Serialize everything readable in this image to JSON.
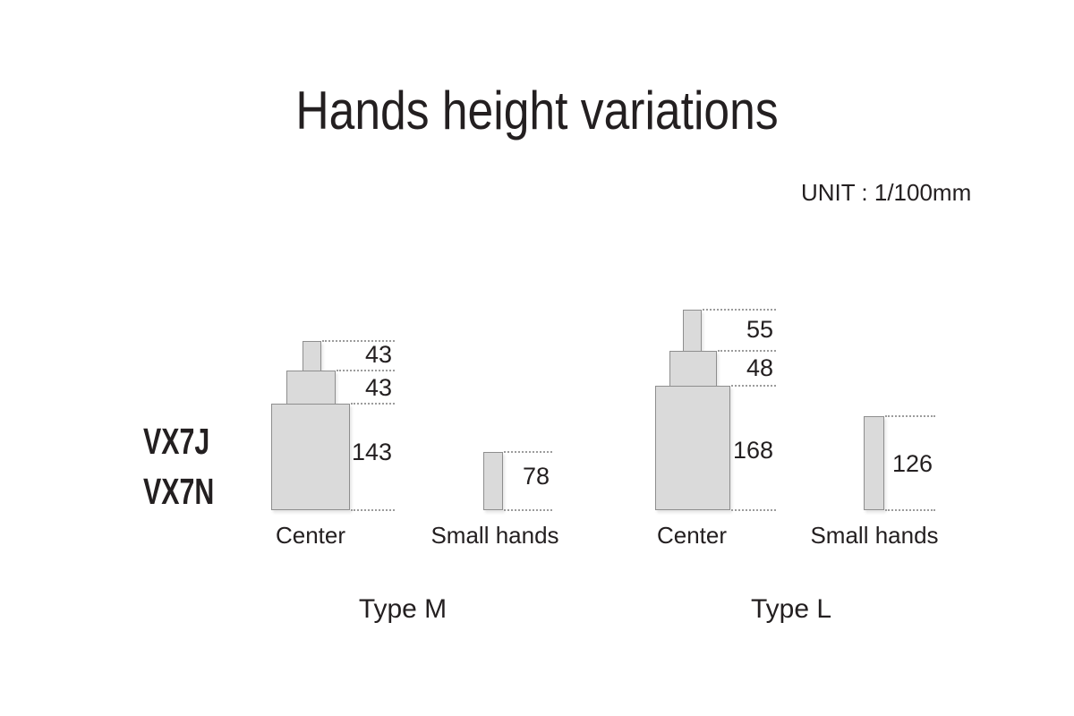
{
  "title": "Hands height variations",
  "unit_label": "UNIT : 1/100mm",
  "models": {
    "line1": "VX7J",
    "line2": "VX7N"
  },
  "colors": {
    "background": "#ffffff",
    "text": "#231f20",
    "shape_fill": "#dadada",
    "shape_border": "#8e8e8e",
    "dotted_line": "#9c9c9c"
  },
  "diagram": {
    "type": "dimensioned-diagram",
    "unit": "1/100mm",
    "groups": [
      {
        "type_label": "Type M",
        "center": {
          "axis_label": "Center",
          "segment_heights": [
            "43",
            "43",
            "143"
          ]
        },
        "small_hands": {
          "axis_label": "Small hands",
          "height": "78"
        }
      },
      {
        "type_label": "Type L",
        "center": {
          "axis_label": "Center",
          "segment_heights": [
            "55",
            "48",
            "168"
          ]
        },
        "small_hands": {
          "axis_label": "Small hands",
          "height": "126"
        }
      }
    ]
  }
}
